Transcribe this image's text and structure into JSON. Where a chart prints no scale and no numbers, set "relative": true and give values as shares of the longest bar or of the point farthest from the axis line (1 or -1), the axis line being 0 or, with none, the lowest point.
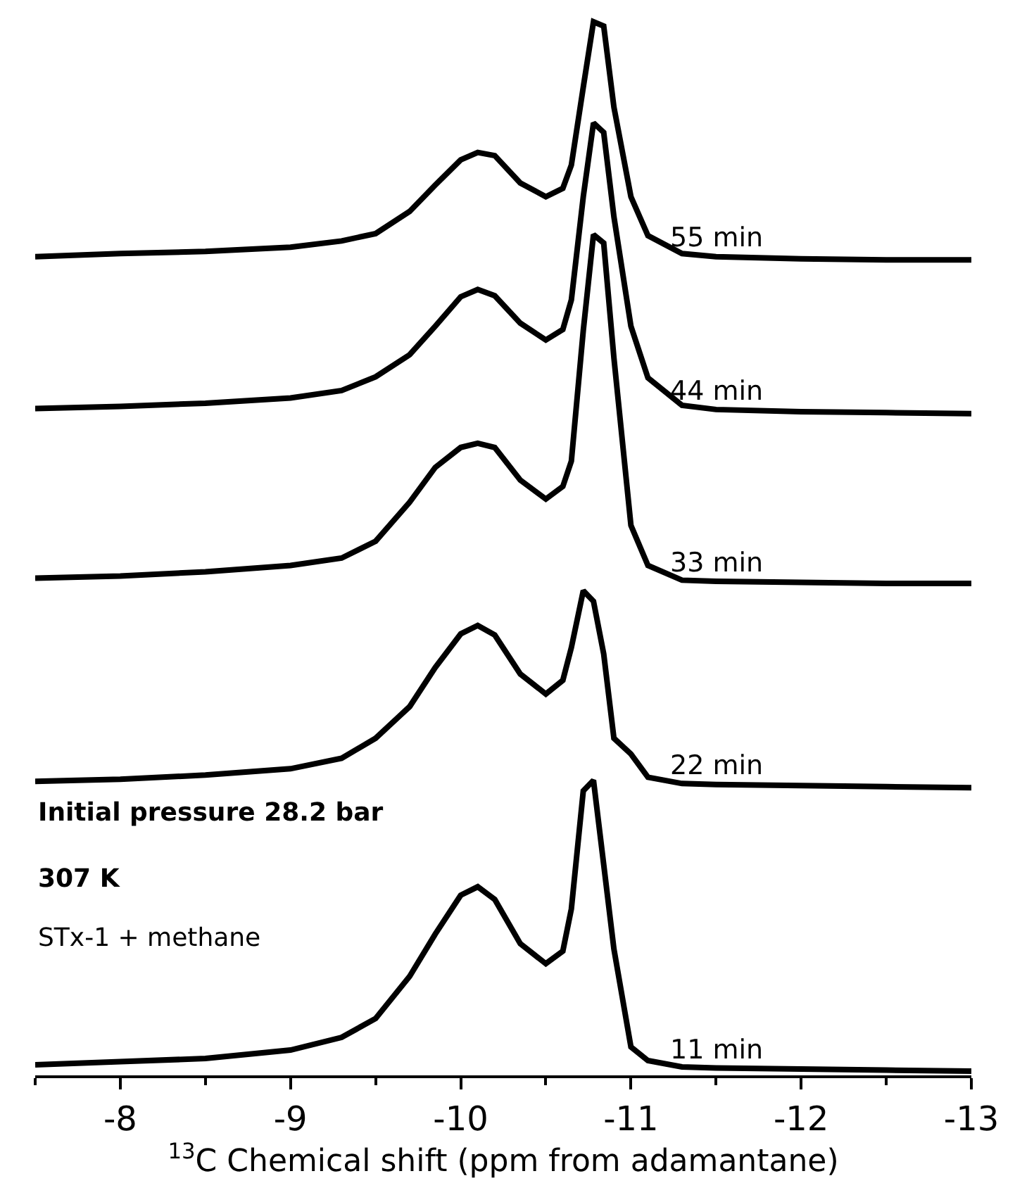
{
  "chart_data": {
    "type": "line",
    "relative": true,
    "xlabel": "$^{13}$C Chemical shift (ppm from adamantane)",
    "x": [
      -7.5,
      -8,
      -8.5,
      -9,
      -9.3,
      -9.5,
      -9.7,
      -9.85,
      -10,
      -10.1,
      -10.2,
      -10.35,
      -10.5,
      -10.6,
      -10.65,
      -10.72,
      -10.78,
      -10.84,
      -10.9,
      -11,
      -11.1,
      -11.3,
      -11.5,
      -12,
      -12.5,
      -13
    ],
    "xlim": [
      -7.5,
      -13
    ],
    "xticks": [
      -8,
      -9,
      -10,
      -11,
      -12,
      -13
    ],
    "legend": false,
    "series": [
      {
        "name": "55 min",
        "color": "#000000",
        "values": [
          0.777,
          0.78,
          0.782,
          0.786,
          0.792,
          0.799,
          0.82,
          0.845,
          0.869,
          0.876,
          0.873,
          0.847,
          0.834,
          0.842,
          0.864,
          0.938,
          1,
          0.996,
          0.919,
          0.834,
          0.797,
          0.78,
          0.777,
          0.775,
          0.774,
          0.774
        ]
      },
      {
        "name": "44 min",
        "color": "#000000",
        "values": [
          0.633,
          0.635,
          0.638,
          0.643,
          0.65,
          0.663,
          0.684,
          0.711,
          0.739,
          0.746,
          0.74,
          0.714,
          0.698,
          0.708,
          0.736,
          0.834,
          0.904,
          0.895,
          0.815,
          0.711,
          0.662,
          0.636,
          0.632,
          0.63,
          0.629,
          0.628
        ]
      },
      {
        "name": "33 min",
        "color": "#000000",
        "values": [
          0.472,
          0.474,
          0.478,
          0.484,
          0.491,
          0.507,
          0.544,
          0.577,
          0.596,
          0.6,
          0.596,
          0.565,
          0.547,
          0.559,
          0.583,
          0.707,
          0.798,
          0.79,
          0.681,
          0.522,
          0.484,
          0.47,
          0.469,
          0.468,
          0.467,
          0.467
        ]
      },
      {
        "name": "22 min",
        "color": "#000000",
        "values": [
          0.279,
          0.281,
          0.285,
          0.291,
          0.301,
          0.32,
          0.35,
          0.387,
          0.419,
          0.427,
          0.418,
          0.381,
          0.362,
          0.375,
          0.406,
          0.46,
          0.45,
          0.4,
          0.32,
          0.305,
          0.283,
          0.277,
          0.276,
          0.275,
          0.274,
          0.273
        ]
      },
      {
        "name": "11 min",
        "color": "#000000",
        "values": [
          0.01,
          0.013,
          0.016,
          0.024,
          0.036,
          0.054,
          0.094,
          0.134,
          0.171,
          0.179,
          0.167,
          0.125,
          0.106,
          0.118,
          0.158,
          0.27,
          0.28,
          0.2,
          0.12,
          0.027,
          0.014,
          0.008,
          0.007,
          0.006,
          0.005,
          0.004
        ]
      }
    ],
    "annotations": [
      "Initial pressure 28.2 bar",
      "307 K",
      "STx-1 + methane"
    ]
  }
}
